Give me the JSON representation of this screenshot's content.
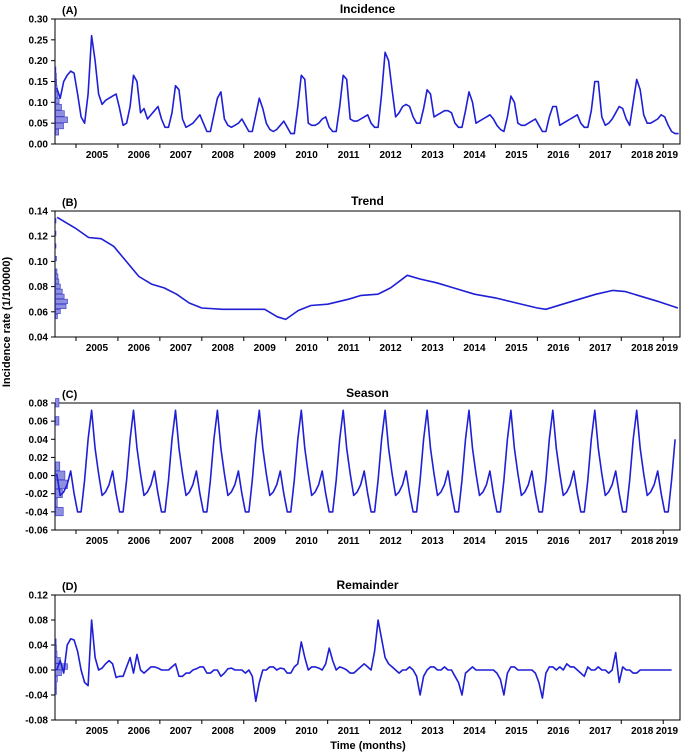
{
  "figure": {
    "ylabel": "Incidence rate (1/100000)",
    "xlabel": "Time (months)"
  },
  "colors": {
    "line": "#1f1fd6",
    "hist_fill": "#8f8fe0",
    "hist_stroke": "#3535c8",
    "axis": "#000000"
  },
  "chart_data": [
    {
      "type": "line",
      "label": "(A)",
      "title": "Incidence",
      "ylim": [
        0,
        0.3
      ],
      "yticks": [
        "0.00",
        "0.05",
        "0.10",
        "0.15",
        "0.20",
        "0.25",
        "0.30"
      ],
      "xlim": [
        2004.5,
        2019.4
      ],
      "xticks": [
        "2005",
        "2006",
        "2007",
        "2008",
        "2009",
        "2010",
        "2011",
        "2012",
        "2013",
        "2014",
        "2015",
        "2016",
        "2017",
        "2018",
        "2019"
      ],
      "x_start": 2004.54,
      "x_step": 0.0833,
      "values": [
        0.135,
        0.11,
        0.15,
        0.165,
        0.175,
        0.17,
        0.12,
        0.065,
        0.05,
        0.12,
        0.26,
        0.2,
        0.12,
        0.095,
        0.105,
        0.11,
        0.115,
        0.12,
        0.085,
        0.045,
        0.05,
        0.09,
        0.165,
        0.15,
        0.075,
        0.085,
        0.06,
        0.07,
        0.08,
        0.09,
        0.06,
        0.04,
        0.04,
        0.075,
        0.14,
        0.13,
        0.06,
        0.04,
        0.045,
        0.05,
        0.06,
        0.07,
        0.05,
        0.03,
        0.03,
        0.07,
        0.11,
        0.125,
        0.06,
        0.045,
        0.04,
        0.045,
        0.05,
        0.06,
        0.045,
        0.03,
        0.03,
        0.07,
        0.11,
        0.085,
        0.05,
        0.035,
        0.03,
        0.035,
        0.045,
        0.055,
        0.04,
        0.025,
        0.025,
        0.09,
        0.165,
        0.155,
        0.05,
        0.045,
        0.045,
        0.05,
        0.06,
        0.065,
        0.04,
        0.03,
        0.03,
        0.09,
        0.165,
        0.155,
        0.06,
        0.055,
        0.055,
        0.06,
        0.065,
        0.07,
        0.05,
        0.04,
        0.04,
        0.12,
        0.22,
        0.2,
        0.13,
        0.065,
        0.075,
        0.09,
        0.095,
        0.09,
        0.065,
        0.05,
        0.05,
        0.085,
        0.13,
        0.12,
        0.065,
        0.07,
        0.075,
        0.08,
        0.08,
        0.075,
        0.05,
        0.04,
        0.04,
        0.08,
        0.125,
        0.1,
        0.05,
        0.055,
        0.06,
        0.065,
        0.07,
        0.06,
        0.045,
        0.035,
        0.03,
        0.065,
        0.115,
        0.1,
        0.05,
        0.045,
        0.045,
        0.05,
        0.055,
        0.06,
        0.045,
        0.03,
        0.03,
        0.065,
        0.09,
        0.09,
        0.045,
        0.05,
        0.055,
        0.06,
        0.065,
        0.07,
        0.05,
        0.04,
        0.04,
        0.08,
        0.15,
        0.15,
        0.065,
        0.045,
        0.05,
        0.06,
        0.075,
        0.09,
        0.085,
        0.06,
        0.045,
        0.1,
        0.155,
        0.13,
        0.07,
        0.05,
        0.05,
        0.055,
        0.06,
        0.07,
        0.065,
        0.045,
        0.03,
        0.025,
        0.025
      ],
      "hist_bins": [
        0.02,
        0.035,
        0.05,
        0.065,
        0.08,
        0.095,
        0.11,
        0.125,
        0.14,
        0.155,
        0.17
      ],
      "hist_counts": [
        8,
        20,
        30,
        22,
        15,
        9,
        6,
        4,
        3,
        2,
        1
      ]
    },
    {
      "type": "line",
      "label": "(B)",
      "title": "Trend",
      "ylim": [
        0.04,
        0.14
      ],
      "yticks": [
        "0.04",
        "0.06",
        "0.08",
        "0.10",
        "0.12",
        "0.14"
      ],
      "xlim": [
        2004.5,
        2019.4
      ],
      "xticks": [
        "2005",
        "2006",
        "2007",
        "2008",
        "2009",
        "2010",
        "2011",
        "2012",
        "2013",
        "2014",
        "2015",
        "2016",
        "2017",
        "2018",
        "2019"
      ],
      "points": [
        [
          2004.55,
          0.135
        ],
        [
          2005.0,
          0.126
        ],
        [
          2005.3,
          0.119
        ],
        [
          2005.6,
          0.118
        ],
        [
          2005.9,
          0.112
        ],
        [
          2006.2,
          0.1
        ],
        [
          2006.5,
          0.088
        ],
        [
          2006.8,
          0.082
        ],
        [
          2007.1,
          0.079
        ],
        [
          2007.4,
          0.074
        ],
        [
          2007.7,
          0.067
        ],
        [
          2008.0,
          0.063
        ],
        [
          2008.5,
          0.062
        ],
        [
          2009.0,
          0.062
        ],
        [
          2009.5,
          0.062
        ],
        [
          2009.8,
          0.056
        ],
        [
          2010.0,
          0.054
        ],
        [
          2010.3,
          0.061
        ],
        [
          2010.6,
          0.065
        ],
        [
          2011.0,
          0.066
        ],
        [
          2011.5,
          0.07
        ],
        [
          2011.8,
          0.073
        ],
        [
          2012.2,
          0.074
        ],
        [
          2012.5,
          0.079
        ],
        [
          2012.9,
          0.089
        ],
        [
          2013.2,
          0.086
        ],
        [
          2013.6,
          0.083
        ],
        [
          2014.0,
          0.079
        ],
        [
          2014.5,
          0.074
        ],
        [
          2015.0,
          0.071
        ],
        [
          2015.5,
          0.067
        ],
        [
          2016.0,
          0.063
        ],
        [
          2016.2,
          0.062
        ],
        [
          2016.6,
          0.066
        ],
        [
          2017.0,
          0.07
        ],
        [
          2017.4,
          0.074
        ],
        [
          2017.8,
          0.077
        ],
        [
          2018.1,
          0.076
        ],
        [
          2018.5,
          0.072
        ],
        [
          2018.9,
          0.068
        ],
        [
          2019.35,
          0.063
        ]
      ],
      "hist_bins": [
        0.054,
        0.058,
        0.062,
        0.066,
        0.07,
        0.074,
        0.078,
        0.082,
        0.086,
        0.09,
        0.1,
        0.11,
        0.12,
        0.13
      ],
      "hist_counts": [
        4,
        10,
        22,
        25,
        18,
        14,
        10,
        7,
        5,
        3,
        2,
        1,
        1,
        1
      ]
    },
    {
      "type": "line",
      "label": "(C)",
      "title": "Season",
      "ylim": [
        -0.06,
        0.08
      ],
      "yticks": [
        "-0.06",
        "-0.04",
        "-0.02",
        "0.00",
        "0.02",
        "0.04",
        "0.06",
        "0.08"
      ],
      "xlim": [
        2004.5,
        2019.4
      ],
      "xticks": [
        "2005",
        "2006",
        "2007",
        "2008",
        "2009",
        "2010",
        "2011",
        "2012",
        "2013",
        "2014",
        "2015",
        "2016",
        "2017",
        "2018",
        "2019"
      ],
      "x_start": 2004.54,
      "x_step": 0.0833,
      "cycle": [
        0.002,
        -0.022,
        -0.018,
        -0.01,
        0.005,
        -0.02,
        -0.04,
        -0.04,
        -0.005,
        0.04,
        0.072,
        0.03
      ],
      "n": 178,
      "hist_bins": [
        -0.045,
        -0.035,
        -0.025,
        -0.015,
        -0.005,
        0.005,
        0.015,
        0.025,
        0.035,
        0.045,
        0.055,
        0.065,
        0.075
      ],
      "hist_counts": [
        18,
        4,
        16,
        28,
        22,
        10,
        0,
        0,
        0,
        0,
        8,
        0,
        8
      ]
    },
    {
      "type": "line",
      "label": "(D)",
      "title": "Remainder",
      "ylim": [
        -0.08,
        0.12
      ],
      "yticks": [
        "-0.08",
        "-0.04",
        "0.00",
        "0.04",
        "0.08",
        "0.12"
      ],
      "xlim": [
        2004.5,
        2019.4
      ],
      "xticks": [
        "2005",
        "2006",
        "2007",
        "2008",
        "2009",
        "2010",
        "2011",
        "2012",
        "2013",
        "2014",
        "2015",
        "2016",
        "2017",
        "2018",
        "2019"
      ],
      "x_start": 2004.54,
      "x_step": 0.0833,
      "values": [
        0.0,
        0.015,
        -0.005,
        0.04,
        0.05,
        0.048,
        0.03,
        0.0,
        -0.02,
        -0.025,
        0.08,
        0.02,
        0.0,
        0.003,
        0.01,
        0.015,
        0.01,
        -0.012,
        -0.01,
        -0.01,
        0.005,
        0.02,
        -0.005,
        0.025,
        0.0,
        -0.005,
        0.0,
        0.005,
        0.005,
        0.003,
        0.0,
        0.0,
        0.0,
        0.005,
        0.01,
        -0.01,
        -0.01,
        -0.005,
        -0.005,
        0.0,
        0.002,
        0.005,
        0.005,
        -0.005,
        -0.005,
        0.0,
        0.0,
        -0.01,
        -0.005,
        0.002,
        0.003,
        0.0,
        0.0,
        0.0,
        -0.005,
        0.0,
        -0.01,
        -0.05,
        -0.02,
        0.0,
        0.0,
        0.005,
        0.005,
        0.0,
        0.003,
        0.002,
        -0.005,
        -0.005,
        0.005,
        0.01,
        0.045,
        0.02,
        0.0,
        0.005,
        0.005,
        0.003,
        0.0,
        0.01,
        0.035,
        0.015,
        0.0,
        0.005,
        0.003,
        0.0,
        -0.005,
        -0.005,
        0.0,
        0.005,
        0.01,
        0.005,
        0.0,
        0.03,
        0.08,
        0.05,
        0.02,
        0.01,
        0.005,
        0.0,
        -0.005,
        0.0,
        0.0,
        0.005,
        0.0,
        -0.01,
        -0.04,
        -0.01,
        0.0,
        0.005,
        0.005,
        0.0,
        0.0,
        0.005,
        0.0,
        0.0,
        -0.01,
        -0.02,
        -0.04,
        -0.005,
        0.0,
        0.005,
        0.0,
        0.0,
        0.0,
        0.0,
        0.0,
        0.0,
        -0.005,
        -0.015,
        -0.04,
        -0.005,
        0.005,
        0.005,
        0.0,
        0.0,
        0.0,
        0.0,
        0.0,
        -0.005,
        -0.02,
        -0.045,
        -0.005,
        0.005,
        0.005,
        0.0,
        0.005,
        0.0,
        0.01,
        0.005,
        0.005,
        0.0,
        -0.005,
        -0.01,
        0.005,
        0.0,
        0.0,
        0.005,
        0.0,
        0.0,
        -0.005,
        0.0,
        0.028,
        -0.02,
        0.005,
        0.0,
        0.0,
        -0.005,
        -0.005,
        0.0,
        0.0,
        0.0,
        0.0,
        0.0,
        0.0,
        0.0,
        0.0,
        0.0,
        0.0
      ],
      "hist_bins": [
        -0.04,
        -0.03,
        -0.02,
        -0.01,
        0.0,
        0.01,
        0.02,
        0.03,
        0.04
      ],
      "hist_counts": [
        3,
        3,
        6,
        20,
        40,
        16,
        5,
        3,
        2
      ]
    }
  ]
}
